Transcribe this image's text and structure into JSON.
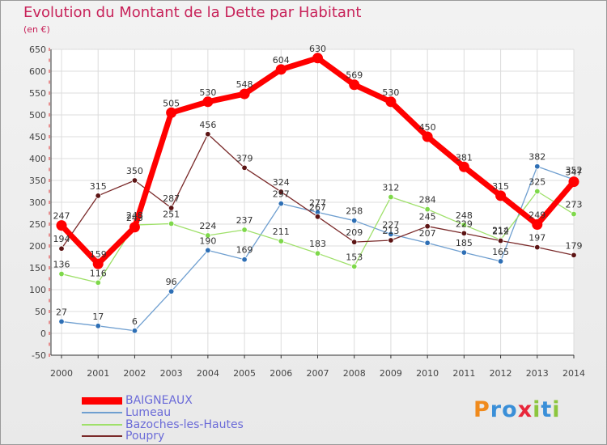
{
  "header": {
    "title": "Evolution du Montant de la Dette par Habitant",
    "unit": "(en €)"
  },
  "logo": {
    "text": "Proxiti",
    "letters": [
      {
        "ch": "P",
        "color": "#f08a1c"
      },
      {
        "ch": "r",
        "color": "#3a8fd8"
      },
      {
        "ch": "o",
        "color": "#3a8fd8"
      },
      {
        "ch": "x",
        "color": "#e8263a"
      },
      {
        "ch": "i",
        "color": "#8cc63e"
      },
      {
        "ch": "t",
        "color": "#3a8fd8"
      },
      {
        "ch": "i",
        "color": "#8cc63e"
      }
    ]
  },
  "chart_data": {
    "type": "line",
    "title": "Evolution du Montant de la Dette par Habitant",
    "subtitle": "(en €)",
    "xlabel": "",
    "ylabel": "",
    "x": [
      "2000",
      "2001",
      "2002",
      "2003",
      "2004",
      "2005",
      "2006",
      "2007",
      "2008",
      "2009",
      "2010",
      "2011",
      "2012",
      "2013",
      "2014"
    ],
    "ylim": [
      -50,
      650
    ],
    "yticks": [
      -50,
      0,
      50,
      100,
      150,
      200,
      250,
      300,
      350,
      400,
      450,
      500,
      550,
      600,
      650
    ],
    "grid": true,
    "legend_position": "bottom-left",
    "series": [
      {
        "name": "BAIGNEAUX",
        "color": "#ff0000",
        "dot": "#ff0000",
        "values": [
          247,
          159,
          243,
          505,
          530,
          548,
          604,
          630,
          569,
          530,
          450,
          381,
          315,
          249,
          347
        ]
      },
      {
        "name": "Lumeau",
        "color": "#6f9fd0",
        "dot": "#2e6fb5",
        "values": [
          27,
          17,
          6,
          96,
          190,
          169,
          297,
          277,
          258,
          227,
          207,
          185,
          165,
          382,
          352
        ]
      },
      {
        "name": "Bazoches-les-Hautes",
        "color": "#9fe06a",
        "dot": "#7ed84a",
        "values": [
          136,
          116,
          248,
          251,
          224,
          237,
          211,
          183,
          153,
          312,
          284,
          248,
          214,
          325,
          273
        ]
      },
      {
        "name": "Poupry",
        "color": "#7a2a2a",
        "dot": "#5c1414",
        "values": [
          194,
          315,
          350,
          287,
          456,
          379,
          324,
          267,
          209,
          213,
          245,
          229,
          212,
          197,
          179
        ]
      }
    ]
  }
}
